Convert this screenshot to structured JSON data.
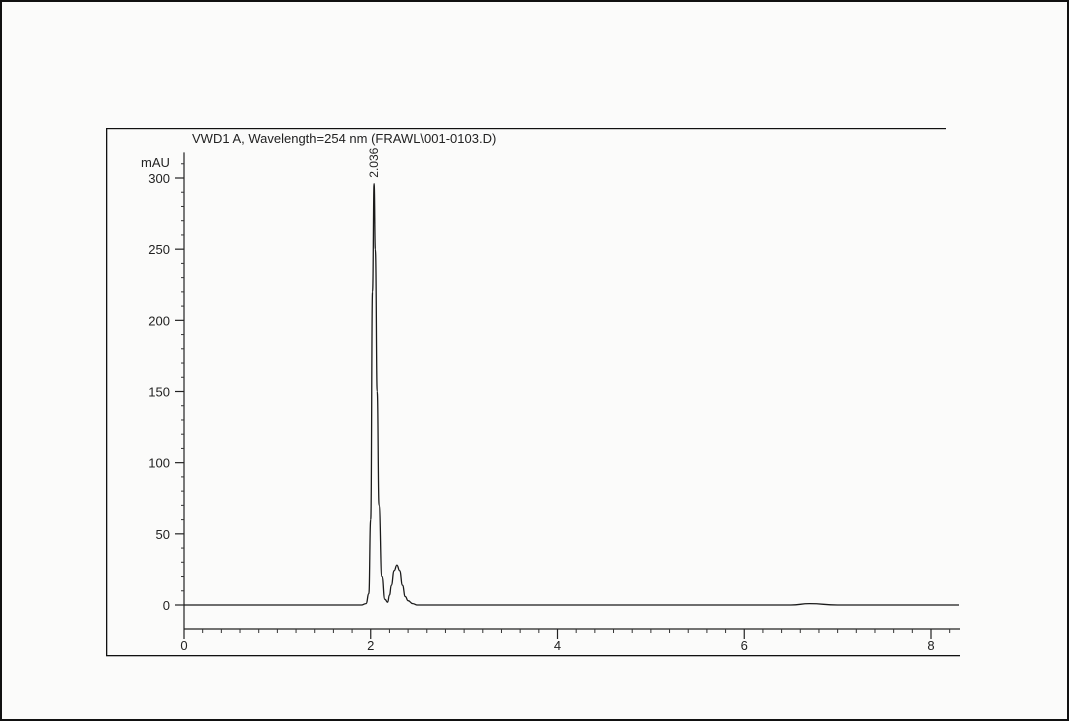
{
  "chart_data": {
    "type": "line",
    "title": "VWD1 A, Wavelength=254 nm (FRAWL\\001-0103.D)",
    "ylabel": "mAU",
    "xlabel": "",
    "xlim": [
      0,
      8.3
    ],
    "ylim": [
      -17,
      318
    ],
    "x_ticks": [
      0,
      2,
      4,
      6,
      8
    ],
    "x_tick_labels": [
      "0",
      "2",
      "4",
      "6",
      "8"
    ],
    "y_ticks": [
      0,
      50,
      100,
      150,
      200,
      250,
      300
    ],
    "y_tick_labels": [
      "0",
      "50",
      "100",
      "150",
      "200",
      "250",
      "300"
    ],
    "grid": false,
    "series": [
      {
        "x": [
          0,
          0.5,
          1.0,
          1.5,
          1.9,
          1.95,
          1.98,
          2.0,
          2.02,
          2.036,
          2.05,
          2.07,
          2.09,
          2.12,
          2.15,
          2.18,
          2.2,
          2.22,
          2.25,
          2.28,
          2.31,
          2.34,
          2.37,
          2.4,
          2.45,
          2.5,
          2.6,
          3.0,
          4.0,
          5.0,
          6.0,
          6.5,
          6.7,
          7.0,
          8.0,
          8.3
        ],
        "y": [
          0,
          0,
          0,
          0,
          0,
          1,
          8,
          60,
          220,
          296,
          250,
          150,
          70,
          20,
          4,
          2,
          7,
          14,
          24,
          28,
          24,
          14,
          6,
          3,
          1,
          0,
          0,
          0,
          0,
          0,
          0,
          0,
          1,
          0,
          0,
          0
        ]
      }
    ],
    "annotations": [
      {
        "label": "2.036",
        "x": 2.036,
        "y": 296,
        "orientation": "vertical"
      }
    ]
  }
}
